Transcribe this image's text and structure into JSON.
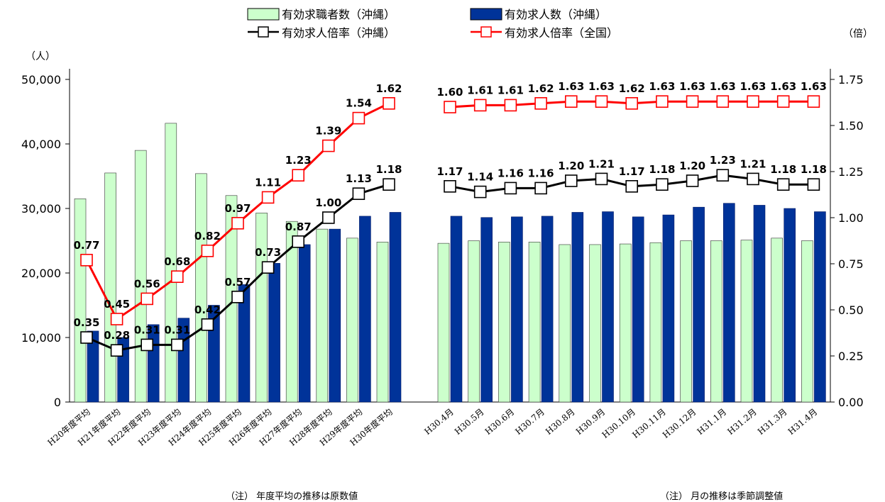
{
  "chart_data": {
    "type": "bar+line",
    "categories": [
      "H20年度平均",
      "H21年度平均",
      "H22年度平均",
      "H23年度平均",
      "H24年度平均",
      "H25年度平均",
      "H26年度平均",
      "H27年度平均",
      "H28年度平均",
      "H29年度平均",
      "H30年度平均",
      "H30.4月",
      "H30.5月",
      "H30.6月",
      "H30.7月",
      "H30.8月",
      "H30.9月",
      "H30.10月",
      "H30.11月",
      "H30.12月",
      "H31.1月",
      "H31.2月",
      "H31.3月",
      "H31.4月"
    ],
    "left_axis": {
      "unit": "（人）",
      "ylim": [
        0,
        50000
      ],
      "ticks": [
        "0",
        "10,000",
        "20,000",
        "30,000",
        "40,000",
        "50,000"
      ]
    },
    "right_axis": {
      "unit": "（倍）",
      "ylim": [
        0,
        1.75
      ],
      "ticks": [
        "0.00",
        "0.25",
        "0.50",
        "0.75",
        "1.00",
        "1.25",
        "1.50",
        "1.75"
      ]
    },
    "series": [
      {
        "name": "有効求職者数（沖縄）",
        "type": "bar",
        "axis": "left",
        "color": "#ccffcc",
        "values": [
          31500,
          35500,
          39000,
          43200,
          35400,
          32000,
          29300,
          28000,
          26800,
          25400,
          24800,
          24600,
          25000,
          24800,
          24800,
          24400,
          24400,
          24500,
          24700,
          25000,
          25000,
          25100,
          25400,
          25000
        ]
      },
      {
        "name": "有効求人数（沖縄）",
        "type": "bar",
        "axis": "left",
        "color": "#003399",
        "values": [
          11000,
          10000,
          12000,
          13000,
          15000,
          18200,
          21500,
          24400,
          26800,
          28800,
          29400,
          28800,
          28600,
          28700,
          28800,
          29400,
          29500,
          28700,
          29000,
          30200,
          30800,
          30500,
          30000,
          29500
        ]
      },
      {
        "name": "有効求人倍率（沖縄）",
        "type": "line",
        "axis": "right",
        "color": "#000000",
        "values": [
          0.35,
          0.28,
          0.31,
          0.31,
          0.42,
          0.57,
          0.73,
          0.87,
          1.0,
          1.13,
          1.18,
          1.17,
          1.14,
          1.16,
          1.16,
          1.2,
          1.21,
          1.17,
          1.18,
          1.2,
          1.23,
          1.21,
          1.18,
          1.18
        ],
        "labels": [
          "0.35",
          "0.28",
          "0.31",
          "0.31",
          "0.42",
          "0.57",
          "0.73",
          "0.87",
          "1.00",
          "1.13",
          "1.18",
          "1.17",
          "1.14",
          "1.16",
          "1.16",
          "1.20",
          "1.21",
          "1.17",
          "1.18",
          "1.20",
          "1.23",
          "1.21",
          "1.18",
          "1.18"
        ],
        "highlight_last_color": "#ff0000"
      },
      {
        "name": "有効求人倍率（全国）",
        "type": "line",
        "axis": "right",
        "color": "#ff0000",
        "values": [
          0.77,
          0.45,
          0.56,
          0.68,
          0.82,
          0.97,
          1.11,
          1.23,
          1.39,
          1.54,
          1.62,
          1.6,
          1.61,
          1.61,
          1.62,
          1.63,
          1.63,
          1.62,
          1.63,
          1.63,
          1.63,
          1.63,
          1.63,
          1.63
        ],
        "labels": [
          "0.77",
          "0.45",
          "0.56",
          "0.68",
          "0.82",
          "0.97",
          "1.11",
          "1.23",
          "1.39",
          "1.54",
          "1.62",
          "1.60",
          "1.61",
          "1.61",
          "1.62",
          "1.63",
          "1.63",
          "1.62",
          "1.63",
          "1.63",
          "1.63",
          "1.63",
          "1.63",
          "1.63"
        ]
      }
    ],
    "legend_position": "top-center",
    "notes": [
      "（注） 年度平均の推移は原数値",
      "（注） 月の推移は季節調整値"
    ]
  }
}
